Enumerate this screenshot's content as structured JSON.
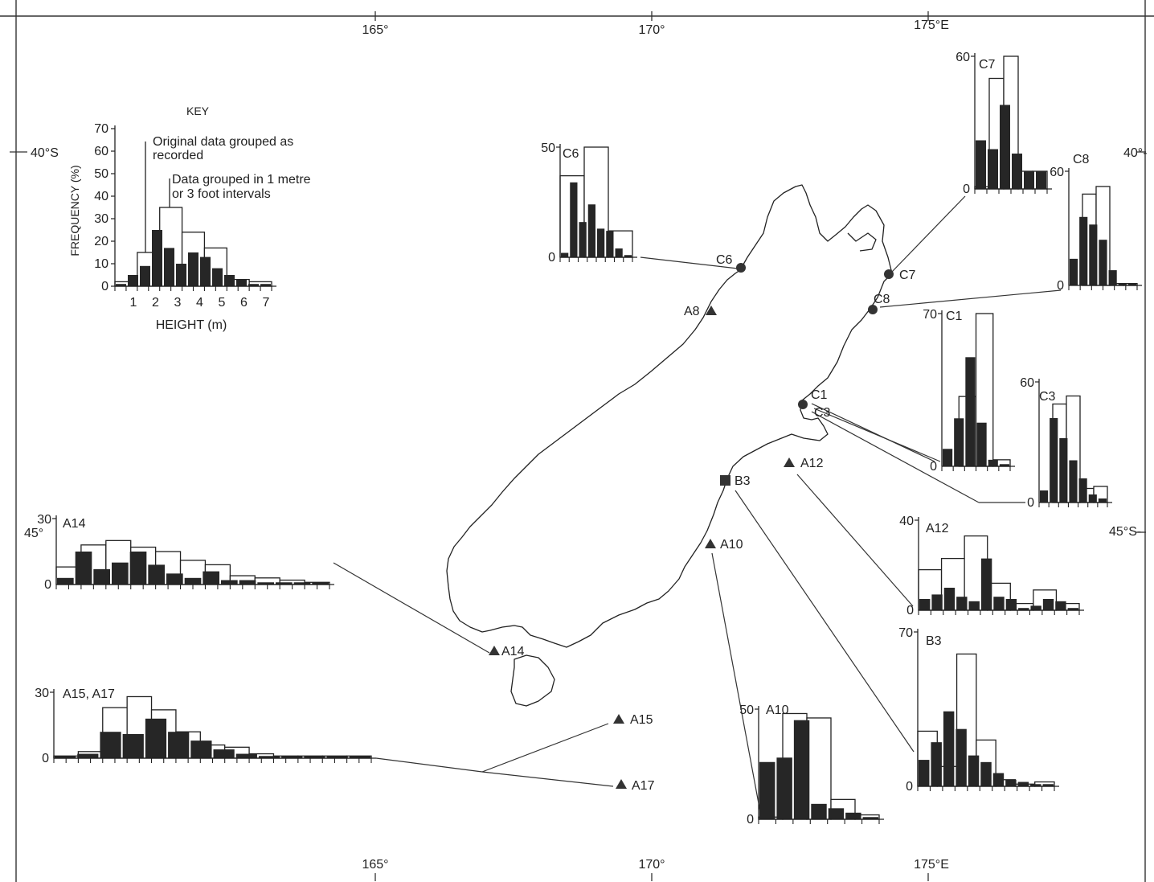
{
  "longitude_ticks": [
    "165°",
    "170°",
    "175°E"
  ],
  "latitude_ticks": {
    "north": "40°S",
    "south": "45°S-",
    "north_right": "40°-",
    "south_left": "45°"
  },
  "key": {
    "title": "KEY",
    "ylabel": "FREQUENCY (%)",
    "xlabel": "HEIGHT (m)",
    "yticks": [
      "0",
      "10",
      "20",
      "30",
      "40",
      "50",
      "60",
      "70"
    ],
    "xticks": [
      "1",
      "2",
      "3",
      "4",
      "5",
      "6",
      "7"
    ],
    "label_original": [
      "Original data grouped as",
      "recorded"
    ],
    "label_grouped": [
      "Data grouped in 1 metre",
      "or 3 foot intervals"
    ],
    "legend": {
      "original": "Original data grouped as recorded",
      "grouped": "Data grouped in 1 metre or 3 foot intervals"
    }
  },
  "stations": [
    {
      "id": "C6",
      "label": "C6",
      "symbol": "circle",
      "color": "#333333"
    },
    {
      "id": "C7",
      "label": "C7",
      "symbol": "circle",
      "color": "#333333"
    },
    {
      "id": "C8",
      "label": "C8",
      "symbol": "circle",
      "color": "#333333"
    },
    {
      "id": "C1",
      "label": "C1",
      "symbol": "circle",
      "color": "#333333"
    },
    {
      "id": "C3",
      "label": "C3",
      "symbol": "none",
      "color": "#333333"
    },
    {
      "id": "A8",
      "label": "A8",
      "symbol": "triangle",
      "color": "#333333"
    },
    {
      "id": "A12",
      "label": "A12",
      "symbol": "triangle",
      "color": "#333333"
    },
    {
      "id": "B3",
      "label": "B3",
      "symbol": "square",
      "color": "#333333"
    },
    {
      "id": "A10",
      "label": "A10",
      "symbol": "triangle",
      "color": "#333333"
    },
    {
      "id": "A14",
      "label": "A14",
      "symbol": "triangle",
      "color": "#333333"
    },
    {
      "id": "A15",
      "label": "A15",
      "symbol": "triangle",
      "color": "#333333"
    },
    {
      "id": "A17",
      "label": "A17",
      "symbol": "triangle",
      "color": "#333333"
    }
  ],
  "chart_data": [
    {
      "id": "KEY",
      "type": "bar",
      "title": "KEY",
      "xlabel": "HEIGHT (m)",
      "ylabel": "FREQUENCY (%)",
      "ylim": [
        0,
        70
      ],
      "open": [
        2,
        15,
        35,
        24,
        17,
        3,
        2
      ],
      "filled": [
        1,
        5,
        9,
        25,
        17,
        10,
        15,
        13,
        8,
        5,
        3,
        1,
        1
      ]
    },
    {
      "id": "C6",
      "type": "bar",
      "title": "C6",
      "yticks": [
        "0",
        "50"
      ],
      "ylim": [
        0,
        50
      ],
      "open": [
        37,
        50,
        12
      ],
      "filled": [
        2,
        34,
        16,
        24,
        13,
        12,
        4,
        1
      ]
    },
    {
      "id": "C7",
      "type": "bar",
      "title": "C7",
      "yticks": [
        "0",
        "60"
      ],
      "ylim": [
        0,
        60
      ],
      "open": [
        1,
        50,
        60,
        8,
        8
      ],
      "filled": [
        22,
        18,
        38,
        16,
        8,
        8
      ]
    },
    {
      "id": "C8",
      "type": "bar",
      "title": "C8",
      "yticks": [
        "0",
        "60"
      ],
      "ylim": [
        0,
        60
      ],
      "open": [
        0,
        48,
        52,
        1,
        1
      ],
      "filled": [
        14,
        36,
        32,
        24,
        8,
        1,
        1
      ]
    },
    {
      "id": "C1",
      "type": "bar",
      "title": "C1",
      "yticks": [
        "0",
        "70"
      ],
      "ylim": [
        0,
        70
      ],
      "open": [
        0,
        32,
        70,
        3
      ],
      "filled": [
        8,
        22,
        50,
        20,
        3,
        1
      ]
    },
    {
      "id": "C3",
      "type": "bar",
      "title": "C3",
      "yticks": [
        "0",
        "60"
      ],
      "ylim": [
        0,
        60
      ],
      "open": [
        0,
        49,
        53,
        7,
        8
      ],
      "filled": [
        6,
        42,
        32,
        21,
        12,
        4,
        2
      ]
    },
    {
      "id": "A12",
      "type": "bar",
      "title": "A12",
      "yticks": [
        "0",
        "40"
      ],
      "ylim": [
        0,
        40
      ],
      "open": [
        18,
        23,
        33,
        12,
        3,
        9,
        3
      ],
      "filled": [
        5,
        7,
        10,
        6,
        4,
        23,
        6,
        5,
        1,
        2,
        5,
        4,
        1
      ]
    },
    {
      "id": "B3",
      "type": "bar",
      "title": "B3",
      "yticks": [
        "0",
        "70"
      ],
      "ylim": [
        0,
        70
      ],
      "open": [
        25,
        9,
        60,
        21,
        3,
        1,
        2
      ],
      "filled": [
        12,
        20,
        34,
        26,
        14,
        11,
        6,
        3,
        2,
        1,
        1
      ]
    },
    {
      "id": "A10",
      "type": "bar",
      "title": "A10",
      "yticks": [
        "0",
        "50"
      ],
      "ylim": [
        0,
        50
      ],
      "open": [
        1,
        48,
        46,
        9,
        2
      ],
      "filled": [
        26,
        28,
        45,
        7,
        5,
        3,
        1
      ]
    },
    {
      "id": "A14",
      "type": "bar",
      "title": "A14",
      "yticks": [
        "0",
        "30"
      ],
      "ylim": [
        0,
        30
      ],
      "open": [
        8,
        18,
        20,
        17,
        15,
        11,
        9,
        4,
        3,
        2,
        1
      ],
      "filled": [
        3,
        15,
        7,
        10,
        15,
        9,
        5,
        3,
        6,
        2,
        2,
        1,
        1,
        1,
        1
      ]
    },
    {
      "id": "A15_A17",
      "type": "bar",
      "title": "A15, A17",
      "yticks": [
        "0",
        "30"
      ],
      "ylim": [
        0,
        30
      ],
      "open": [
        1,
        3,
        23,
        28,
        22,
        12,
        6,
        5,
        2,
        1,
        1,
        1,
        1
      ],
      "filled": [
        1,
        2,
        12,
        11,
        18,
        12,
        8,
        4,
        2,
        1,
        1,
        1,
        1,
        1
      ]
    }
  ]
}
